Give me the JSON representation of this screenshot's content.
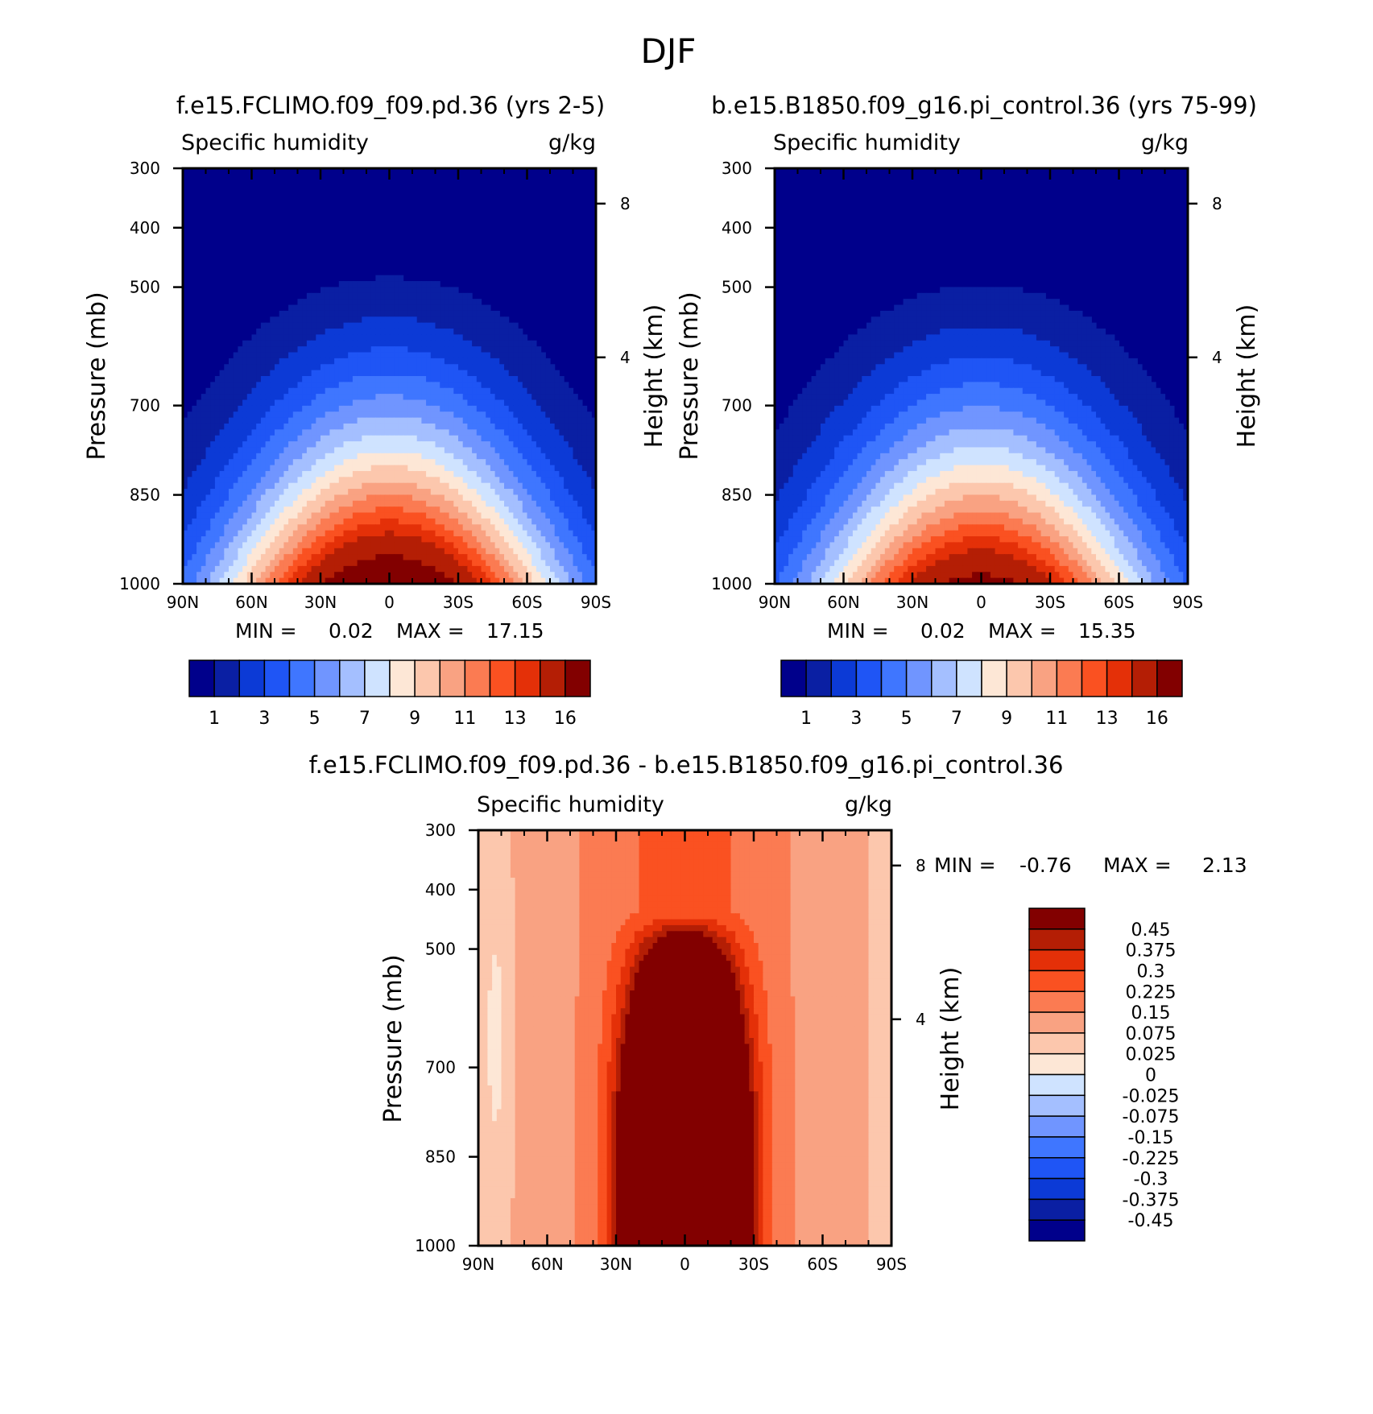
{
  "figure": {
    "title": "DJF"
  },
  "chart_data": [
    {
      "type": "heatmap",
      "id": "panel1",
      "case_title": "f.e15.FCLIMO.f09_f09.pd.36 (yrs 2-5)",
      "variable": "Specific humidity",
      "units": "g/kg",
      "xlabel": "",
      "ylabel": "Pressure (mb)",
      "y2label": "Height (km)",
      "x_ticks": [
        "90N",
        "60N",
        "30N",
        "0",
        "30S",
        "60S",
        "90S"
      ],
      "y_ticks": [
        "300",
        "400",
        "500",
        "700",
        "850",
        "1000"
      ],
      "y2_ticks": [
        "8",
        "4"
      ],
      "xlim": [
        -90,
        90
      ],
      "ylim": [
        1000,
        300
      ],
      "min_label": "MIN =",
      "min_value": "0.02",
      "max_label": "MAX =",
      "max_value": "17.15",
      "colorbar_labels": [
        "1",
        "3",
        "5",
        "7",
        "9",
        "11",
        "13",
        "16"
      ],
      "peak_value": 17.15,
      "peak_lat": 0,
      "peak_level": 1000,
      "top_of_moisture_plume_mb": 400
    },
    {
      "type": "heatmap",
      "id": "panel2",
      "case_title": "b.e15.B1850.f09_g16.pi_control.36 (yrs 75-99)",
      "variable": "Specific humidity",
      "units": "g/kg",
      "xlabel": "",
      "ylabel": "Pressure (mb)",
      "y2label": "Height (km)",
      "x_ticks": [
        "90N",
        "60N",
        "30N",
        "0",
        "30S",
        "60S",
        "90S"
      ],
      "y_ticks": [
        "300",
        "400",
        "500",
        "700",
        "850",
        "1000"
      ],
      "y2_ticks": [
        "8",
        "4"
      ],
      "xlim": [
        -90,
        90
      ],
      "ylim": [
        1000,
        300
      ],
      "min_label": "MIN =",
      "min_value": "0.02",
      "max_label": "MAX =",
      "max_value": "15.35",
      "colorbar_labels": [
        "1",
        "3",
        "5",
        "7",
        "9",
        "11",
        "13",
        "16"
      ],
      "peak_value": 15.35,
      "peak_lat": 0,
      "peak_level": 1000,
      "top_of_moisture_plume_mb": 430
    },
    {
      "type": "heatmap",
      "id": "panel3",
      "case_title": "f.e15.FCLIMO.f09_f09.pd.36 - b.e15.B1850.f09_g16.pi_control.36",
      "variable": "Specific humidity",
      "units": "g/kg",
      "xlabel": "",
      "ylabel": "Pressure (mb)",
      "y2label": "Height (km)",
      "x_ticks": [
        "90N",
        "60N",
        "30N",
        "0",
        "30S",
        "60S",
        "90S"
      ],
      "y_ticks": [
        "300",
        "400",
        "500",
        "700",
        "850",
        "1000"
      ],
      "y2_ticks": [
        "8",
        "4"
      ],
      "xlim": [
        -90,
        90
      ],
      "ylim": [
        1000,
        300
      ],
      "min_label": "MIN =",
      "min_value": "-0.76",
      "max_label": "MAX =",
      "max_value": "2.13",
      "colorbar_labels": [
        "0.45",
        "0.375",
        "0.3",
        "0.225",
        "0.15",
        "0.075",
        "0.025",
        "0",
        "-0.025",
        "-0.075",
        "-0.15",
        "-0.225",
        "-0.3",
        "-0.375",
        "-0.45"
      ],
      "peak_value": 2.13,
      "peak_lat": 0,
      "min_value_num": -0.76
    }
  ],
  "colors": {
    "abs_scale": [
      "#00008b",
      "#0a1fa3",
      "#0c3ad6",
      "#1f55f5",
      "#3f76ff",
      "#7095ff",
      "#a4bfff",
      "#cfe3ff",
      "#fde7d6",
      "#fcc7ad",
      "#f9a282",
      "#fb7b52",
      "#fa5121",
      "#e43008",
      "#b41e05",
      "#820000"
    ],
    "diff_scale": [
      "#00008b",
      "#0a1fa3",
      "#0c3ad6",
      "#1f55f5",
      "#3f76ff",
      "#7095ff",
      "#a4bfff",
      "#cfe3ff",
      "#fde7d6",
      "#fcc7ad",
      "#f9a282",
      "#fb7b52",
      "#fa5121",
      "#e43008",
      "#b41e05",
      "#820000"
    ]
  }
}
